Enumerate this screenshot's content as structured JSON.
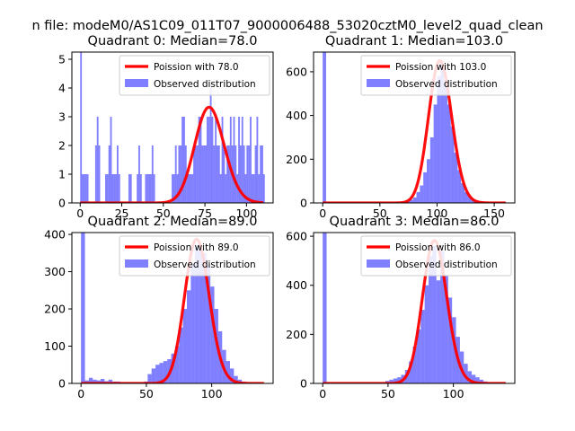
{
  "suptitle": "n file: modeM0/AS1C09_011T07_9000006488_53020cztM0_level2_quad_clean",
  "colors": {
    "poisson": "#ff0000",
    "observed": "#0000ff",
    "observed_alpha": 0.5,
    "axis": "#000000"
  },
  "legend_labels": {
    "poisson": "Poission with {m}",
    "observed": "Observed distribution"
  },
  "chart_data": [
    {
      "type": "histogram+line",
      "title": "Quadrant 0: Median=78.0",
      "median": "78.0",
      "xlim": [
        -5,
        116
      ],
      "ylim": [
        0,
        5.25
      ],
      "xticks": [
        0,
        25,
        50,
        75,
        100
      ],
      "yticks": [
        0,
        1,
        2,
        3,
        4,
        5
      ],
      "legend": "top-right",
      "bins": [
        [
          0,
          1,
          5.25
        ],
        [
          1,
          2,
          1
        ],
        [
          2,
          3,
          1
        ],
        [
          3,
          4,
          1
        ],
        [
          4,
          5,
          1
        ],
        [
          9,
          10,
          2
        ],
        [
          10,
          11,
          3
        ],
        [
          11,
          12,
          2
        ],
        [
          15,
          16,
          1
        ],
        [
          16,
          17,
          1
        ],
        [
          17,
          18,
          2
        ],
        [
          18,
          19,
          3
        ],
        [
          19,
          20,
          1
        ],
        [
          20,
          21,
          1
        ],
        [
          21,
          22,
          1
        ],
        [
          22,
          23,
          2
        ],
        [
          23,
          24,
          1
        ],
        [
          29,
          30,
          1
        ],
        [
          30,
          31,
          1
        ],
        [
          34,
          35,
          1
        ],
        [
          35,
          36,
          2
        ],
        [
          36,
          37,
          1
        ],
        [
          39,
          40,
          1
        ],
        [
          40,
          41,
          1
        ],
        [
          41,
          42,
          1
        ],
        [
          42,
          43,
          1
        ],
        [
          43,
          44,
          2
        ],
        [
          44,
          45,
          1
        ],
        [
          55,
          56,
          1
        ],
        [
          56,
          57,
          1
        ],
        [
          57,
          58,
          2
        ],
        [
          58,
          59,
          1
        ],
        [
          59,
          60,
          2
        ],
        [
          60,
          61,
          2
        ],
        [
          61,
          62,
          3
        ],
        [
          62,
          63,
          3
        ],
        [
          63,
          64,
          2
        ],
        [
          64,
          65,
          1
        ],
        [
          65,
          66,
          1
        ],
        [
          66,
          67,
          1
        ],
        [
          67,
          68,
          1
        ],
        [
          68,
          69,
          2
        ],
        [
          69,
          70,
          2
        ],
        [
          70,
          71,
          2
        ],
        [
          71,
          72,
          3
        ],
        [
          72,
          73,
          3
        ],
        [
          73,
          74,
          2
        ],
        [
          74,
          75,
          2
        ],
        [
          75,
          76,
          2
        ],
        [
          76,
          77,
          3
        ],
        [
          77,
          78,
          3
        ],
        [
          78,
          79,
          4
        ],
        [
          79,
          80,
          3
        ],
        [
          80,
          81,
          2
        ],
        [
          81,
          82,
          3
        ],
        [
          82,
          83,
          2
        ],
        [
          83,
          84,
          2
        ],
        [
          84,
          85,
          1
        ],
        [
          85,
          86,
          3
        ],
        [
          86,
          87,
          2
        ],
        [
          87,
          88,
          1
        ],
        [
          88,
          89,
          2
        ],
        [
          89,
          90,
          2
        ],
        [
          90,
          91,
          3
        ],
        [
          91,
          92,
          2
        ],
        [
          92,
          93,
          3
        ],
        [
          93,
          94,
          2
        ],
        [
          94,
          95,
          1
        ],
        [
          95,
          96,
          3
        ],
        [
          96,
          97,
          2
        ],
        [
          97,
          98,
          3
        ],
        [
          98,
          99,
          2
        ],
        [
          99,
          100,
          1
        ],
        [
          100,
          101,
          2
        ],
        [
          101,
          102,
          2
        ],
        [
          102,
          103,
          3
        ],
        [
          103,
          104,
          1
        ],
        [
          104,
          105,
          1
        ],
        [
          105,
          106,
          2
        ],
        [
          106,
          107,
          3
        ],
        [
          107,
          108,
          1
        ],
        [
          108,
          109,
          2
        ],
        [
          109,
          110,
          2
        ],
        [
          110,
          111,
          1
        ]
      ],
      "poisson": {
        "mean": 78.0,
        "scale": 73.8,
        "x_range": [
          0,
          110
        ]
      }
    },
    {
      "type": "histogram+line",
      "title": "Quadrant 1: Median=103.0",
      "median": "103.0",
      "xlim": [
        -8,
        168
      ],
      "ylim": [
        0,
        690
      ],
      "xticks": [
        0,
        50,
        100,
        150
      ],
      "yticks": [
        0,
        200,
        400,
        600
      ],
      "legend": "top-right",
      "bins": [
        [
          0,
          3,
          690
        ],
        [
          70,
          73,
          5
        ],
        [
          73,
          76,
          8
        ],
        [
          76,
          79,
          15
        ],
        [
          79,
          82,
          25
        ],
        [
          82,
          85,
          50
        ],
        [
          85,
          88,
          80
        ],
        [
          88,
          91,
          140
        ],
        [
          91,
          94,
          200
        ],
        [
          94,
          97,
          300
        ],
        [
          97,
          100,
          450
        ],
        [
          100,
          103,
          580
        ],
        [
          103,
          106,
          640
        ],
        [
          106,
          109,
          560
        ],
        [
          109,
          112,
          450
        ],
        [
          112,
          115,
          350
        ],
        [
          115,
          118,
          230
        ],
        [
          118,
          121,
          150
        ],
        [
          121,
          124,
          90
        ],
        [
          124,
          127,
          50
        ],
        [
          127,
          130,
          30
        ],
        [
          130,
          133,
          18
        ],
        [
          133,
          136,
          12
        ],
        [
          136,
          139,
          8
        ],
        [
          139,
          142,
          5
        ],
        [
          142,
          145,
          3
        ]
      ],
      "poisson": {
        "mean": 103.0,
        "scale": 16550,
        "x_range": [
          0,
          160
        ]
      }
    },
    {
      "type": "histogram+line",
      "title": "Quadrant 2: Median=89.0",
      "median": "89.0",
      "xlim": [
        -7,
        147
      ],
      "ylim": [
        0,
        405
      ],
      "xticks": [
        0,
        50,
        100
      ],
      "yticks": [
        0,
        100,
        200,
        300,
        400
      ],
      "legend": "top-right",
      "bins": [
        [
          0,
          3,
          405
        ],
        [
          3,
          6,
          8
        ],
        [
          6,
          9,
          15
        ],
        [
          9,
          12,
          10
        ],
        [
          12,
          15,
          8
        ],
        [
          15,
          18,
          12
        ],
        [
          18,
          21,
          6
        ],
        [
          21,
          24,
          10
        ],
        [
          24,
          27,
          5
        ],
        [
          27,
          30,
          5
        ],
        [
          30,
          33,
          3
        ],
        [
          33,
          36,
          3
        ],
        [
          36,
          39,
          3
        ],
        [
          39,
          42,
          3
        ],
        [
          42,
          45,
          2
        ],
        [
          45,
          48,
          2
        ],
        [
          48,
          51,
          5
        ],
        [
          51,
          54,
          25
        ],
        [
          54,
          57,
          40
        ],
        [
          57,
          60,
          50
        ],
        [
          60,
          63,
          55
        ],
        [
          63,
          66,
          60
        ],
        [
          66,
          69,
          65
        ],
        [
          69,
          72,
          80
        ],
        [
          72,
          75,
          100
        ],
        [
          75,
          78,
          150
        ],
        [
          78,
          81,
          200
        ],
        [
          81,
          84,
          250
        ],
        [
          84,
          87,
          320
        ],
        [
          87,
          90,
          370
        ],
        [
          90,
          93,
          360
        ],
        [
          93,
          96,
          350
        ],
        [
          96,
          99,
          320
        ],
        [
          99,
          102,
          260
        ],
        [
          102,
          105,
          200
        ],
        [
          105,
          108,
          140
        ],
        [
          108,
          111,
          90
        ],
        [
          111,
          114,
          60
        ],
        [
          114,
          117,
          40
        ],
        [
          117,
          120,
          20
        ],
        [
          120,
          123,
          10
        ],
        [
          123,
          126,
          5
        ]
      ],
      "poisson": {
        "mean": 89.0,
        "scale": 9160,
        "x_range": [
          0,
          140
        ]
      }
    },
    {
      "type": "histogram+line",
      "title": "Quadrant 3: Median=86.0",
      "median": "86.0",
      "xlim": [
        -7,
        147
      ],
      "ylim": [
        0,
        615
      ],
      "xticks": [
        0,
        50,
        100
      ],
      "yticks": [
        0,
        200,
        400,
        600
      ],
      "legend": "top-right",
      "bins": [
        [
          0,
          3,
          615
        ],
        [
          45,
          48,
          5
        ],
        [
          48,
          51,
          10
        ],
        [
          51,
          54,
          15
        ],
        [
          54,
          57,
          20
        ],
        [
          57,
          60,
          25
        ],
        [
          60,
          63,
          35
        ],
        [
          63,
          66,
          55
        ],
        [
          66,
          69,
          90
        ],
        [
          69,
          72,
          150
        ],
        [
          72,
          75,
          220
        ],
        [
          75,
          78,
          300
        ],
        [
          78,
          81,
          400
        ],
        [
          81,
          84,
          520
        ],
        [
          84,
          87,
          560
        ],
        [
          87,
          90,
          420
        ],
        [
          90,
          93,
          540
        ],
        [
          93,
          96,
          440
        ],
        [
          96,
          99,
          350
        ],
        [
          99,
          102,
          270
        ],
        [
          102,
          105,
          190
        ],
        [
          105,
          108,
          130
        ],
        [
          108,
          111,
          80
        ],
        [
          111,
          114,
          50
        ],
        [
          114,
          117,
          35
        ],
        [
          117,
          120,
          25
        ],
        [
          120,
          123,
          15
        ],
        [
          123,
          126,
          8
        ]
      ],
      "poisson": {
        "mean": 86.0,
        "scale": 13550,
        "x_range": [
          0,
          140
        ]
      }
    }
  ]
}
